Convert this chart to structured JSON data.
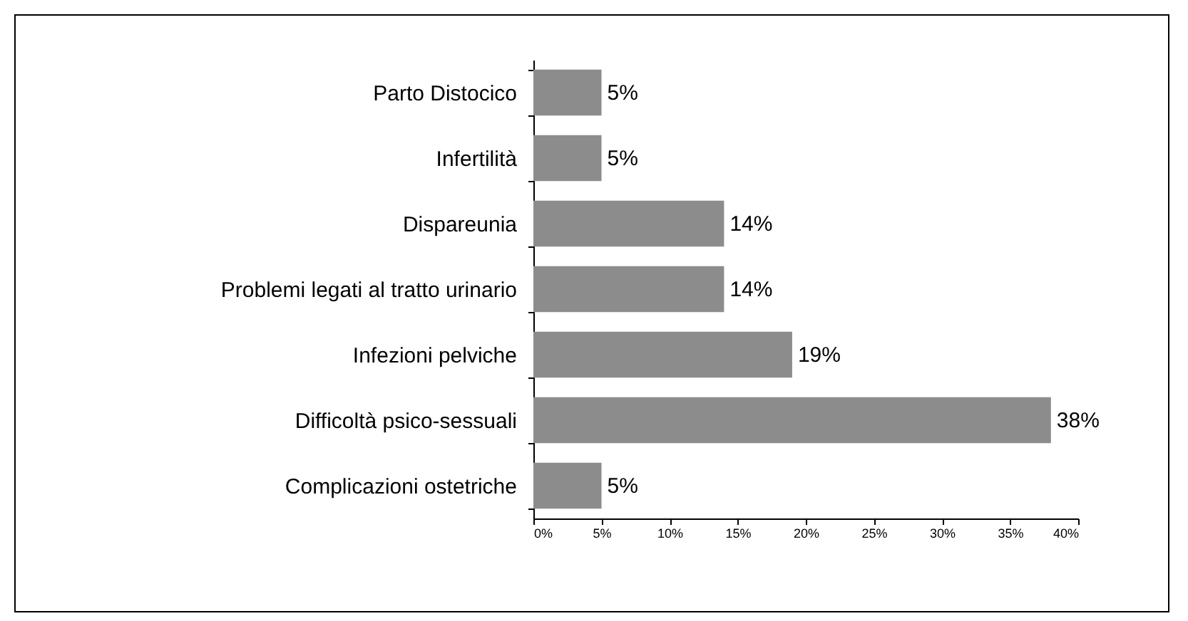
{
  "chart_data": {
    "type": "bar",
    "orientation": "horizontal",
    "categories": [
      "Parto Distocico",
      "Infertilità",
      "Dispareunia",
      "Problemi legati al tratto urinario",
      "Infezioni pelviche",
      "Difficoltà psico-sessuali",
      "Complicazioni ostetriche"
    ],
    "values": [
      5,
      5,
      14,
      14,
      19,
      38,
      5
    ],
    "value_labels": [
      "5%",
      "5%",
      "14%",
      "14%",
      "19%",
      "38%",
      "5%"
    ],
    "color": "#8c8c8c",
    "xlim": [
      0,
      40
    ],
    "xticks": [
      {
        "value": 0,
        "label": "0%"
      },
      {
        "value": 5,
        "label": "5%"
      },
      {
        "value": 10,
        "label": "10%"
      },
      {
        "value": 15,
        "label": "15%"
      },
      {
        "value": 20,
        "label": "20%"
      },
      {
        "value": 25,
        "label": "25%"
      },
      {
        "value": 30,
        "label": "30%"
      },
      {
        "value": 35,
        "label": "35%"
      },
      {
        "value": 40,
        "label": "40%"
      }
    ],
    "grid": false
  }
}
